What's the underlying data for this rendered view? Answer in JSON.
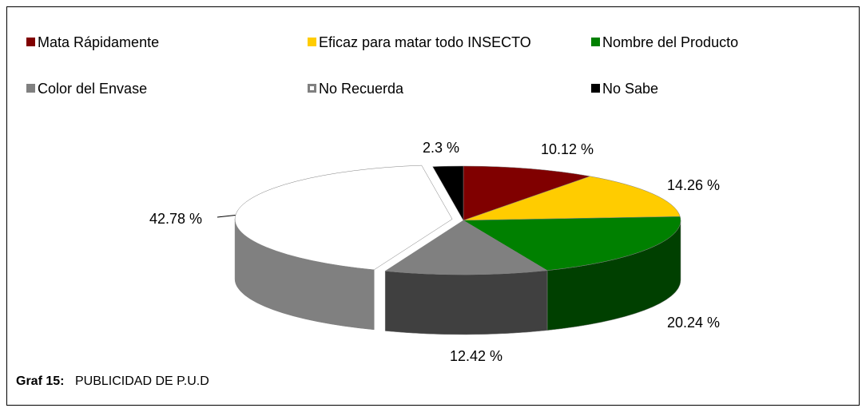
{
  "chart_data": {
    "type": "pie",
    "categories": [
      "Mata Rápidamente",
      "Eficaz para matar todo INSECTO",
      "Nombre del Producto",
      "Color del Envase",
      "No Recuerda",
      "No Sabe"
    ],
    "values": [
      10.12,
      14.26,
      20.24,
      12.42,
      42.78,
      2.3
    ],
    "value_labels": [
      "10.12 %",
      "14.26 %",
      "20.24 %",
      "12.42 %",
      "42.78 %",
      "2.3 %"
    ],
    "colors": [
      "#800000",
      "#ffcc00",
      "#008000",
      "#808080",
      "#ffffff",
      "#000000"
    ],
    "figure_label": "Graf 15:",
    "title": "PUBLICIDAD DE P.U.D"
  }
}
